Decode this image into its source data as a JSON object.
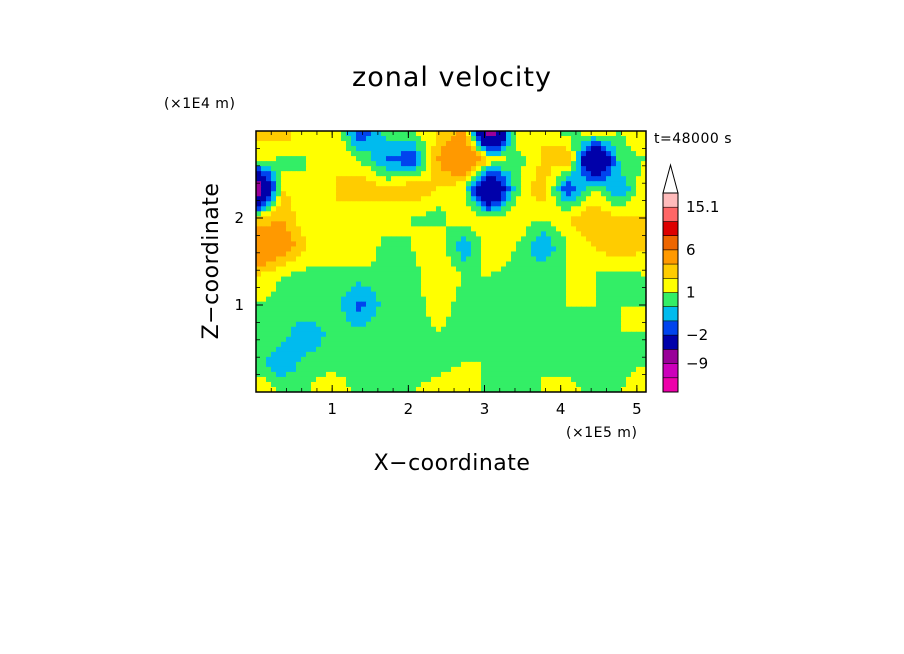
{
  "chart_data": {
    "type": "heatmap",
    "title": "zonal velocity",
    "xlabel": "X−coordinate",
    "ylabel": "Z−coordinate",
    "x_unit": "(×1E5 m)",
    "y_unit": "(×1E4 m)",
    "time_label": "t=48000 s",
    "xlim": [
      0,
      5.12
    ],
    "ylim": [
      0,
      3.0
    ],
    "x_ticks": [
      {
        "value": 1,
        "label": "1"
      },
      {
        "value": 2,
        "label": "2"
      },
      {
        "value": 3,
        "label": "3"
      },
      {
        "value": 4,
        "label": "4"
      },
      {
        "value": 5,
        "label": "5"
      }
    ],
    "y_ticks": [
      {
        "value": 1,
        "label": "1"
      },
      {
        "value": 2,
        "label": "2"
      }
    ],
    "colorbar": {
      "levels": [
        -15,
        -12,
        -9,
        -6,
        -2,
        -1,
        0,
        1,
        2,
        3,
        6,
        9,
        12,
        15.1
      ],
      "colors": [
        "#ee00aa",
        "#cc00bb",
        "#990099",
        "#0000aa",
        "#0044ee",
        "#00bbee",
        "#33ee66",
        "#ffff00",
        "#ffcc00",
        "#ff9900",
        "#ee6600",
        "#dd0000",
        "#ff6666",
        "#ffbbbb"
      ],
      "over_color": "#ffffff",
      "labels": [
        {
          "value": 15.1,
          "label": "15.1"
        },
        {
          "value": 6,
          "label": "6"
        },
        {
          "value": 1,
          "label": "1"
        },
        {
          "value": -2,
          "label": "−2"
        },
        {
          "value": -9,
          "label": "−9"
        }
      ]
    },
    "field": {
      "description_values": "zonal velocity (m/s) sampled on regular grid, rows from bottom (z=0) to top (z=3), columns from x=0 to x=5.12",
      "nx": 16,
      "nz": 10,
      "values": [
        [
          2,
          1,
          1,
          2,
          0.5,
          1,
          1,
          1.5,
          2,
          0.5,
          1,
          1,
          1.5,
          0.5,
          1,
          2
        ],
        [
          0.5,
          -1,
          0.5,
          0.5,
          0.5,
          0.5,
          0.5,
          0.5,
          1,
          1,
          0.5,
          1,
          0.5,
          0.5,
          0.5,
          1
        ],
        [
          1,
          0.5,
          -1,
          0.5,
          0.5,
          0.5,
          0.5,
          1,
          0.5,
          0.5,
          1,
          1,
          0.5,
          0.5,
          1,
          1
        ],
        [
          1,
          0.5,
          1,
          0.5,
          -1.5,
          0.5,
          0.5,
          1.5,
          0.5,
          1,
          1,
          0.5,
          1,
          1,
          1,
          1
        ],
        [
          2,
          1,
          0.5,
          1,
          0.5,
          1,
          0.5,
          2,
          1,
          1,
          0.5,
          1,
          1,
          1,
          0.5,
          1
        ],
        [
          6,
          4,
          2,
          1,
          2,
          0.5,
          1,
          2,
          -1,
          2,
          1,
          -1,
          1,
          2,
          3,
          2
        ],
        [
          2,
          3,
          1,
          2,
          1,
          2,
          1,
          0.5,
          2,
          1,
          2,
          1,
          2,
          3,
          2,
          2
        ],
        [
          -9,
          2,
          1,
          2,
          3,
          2,
          3,
          2,
          1,
          -6,
          0.5,
          3,
          -2,
          1,
          -1,
          2
        ],
        [
          2,
          0.5,
          1,
          2,
          1,
          -1,
          -2,
          3,
          6,
          2,
          0.5,
          2,
          3,
          -6,
          0.5,
          1
        ],
        [
          2,
          3,
          1,
          2,
          -2,
          0.5,
          1,
          2,
          3,
          -9,
          2,
          2,
          0.5,
          2,
          1,
          2
        ]
      ]
    }
  }
}
